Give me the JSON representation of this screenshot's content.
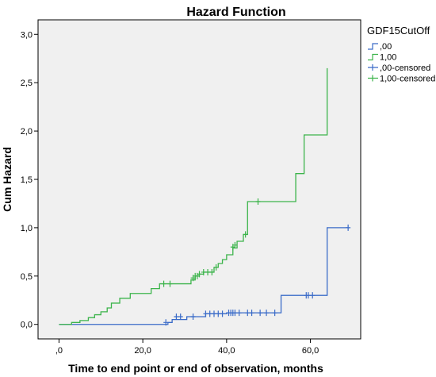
{
  "chart_data": {
    "type": "line",
    "title": "Hazard Function",
    "xlabel": "Time to end point or end of observation, months",
    "ylabel": "Cum Hazard",
    "xlim": [
      -5,
      72
    ],
    "ylim": [
      -0.15,
      3.15
    ],
    "x_ticks": [
      0,
      20,
      40,
      60
    ],
    "x_tick_labels": [
      ",0",
      "20,0",
      "40,0",
      "60,0"
    ],
    "y_ticks": [
      0,
      0.5,
      1,
      1.5,
      2,
      2.5,
      3
    ],
    "y_tick_labels": [
      "0,0",
      "0,5",
      "1,0",
      "1,5",
      "2,0",
      "2,5",
      "3,0"
    ],
    "plot_background": "#f0f0f0",
    "grid": false,
    "legend_position": "right",
    "legend": {
      "title": "GDF15CutOff",
      "entries": [
        {
          "label": ",00",
          "kind": "step",
          "color": "#3a6bc8"
        },
        {
          "label": "1,00",
          "kind": "step",
          "color": "#3cb44b"
        },
        {
          "label": ",00-censored",
          "kind": "censor",
          "color": "#3a6bc8"
        },
        {
          "label": "1,00-censored",
          "kind": "censor",
          "color": "#3cb44b"
        }
      ]
    },
    "series": [
      {
        "group": ",00",
        "color": "#3a6bc8",
        "steps": [
          [
            0,
            0.0
          ],
          [
            26,
            0.02
          ],
          [
            27,
            0.05
          ],
          [
            30.5,
            0.08
          ],
          [
            35,
            0.11
          ],
          [
            40,
            0.12
          ],
          [
            53,
            0.3
          ],
          [
            64,
            1.0
          ],
          [
            69,
            1.0
          ]
        ],
        "censored": [
          [
            25.5,
            0.02
          ],
          [
            28,
            0.08
          ],
          [
            29,
            0.08
          ],
          [
            32,
            0.08
          ],
          [
            35,
            0.11
          ],
          [
            36,
            0.11
          ],
          [
            37,
            0.11
          ],
          [
            38,
            0.11
          ],
          [
            39,
            0.11
          ],
          [
            40.5,
            0.12
          ],
          [
            41,
            0.12
          ],
          [
            41.5,
            0.12
          ],
          [
            42,
            0.12
          ],
          [
            43,
            0.12
          ],
          [
            45,
            0.12
          ],
          [
            46,
            0.12
          ],
          [
            48,
            0.12
          ],
          [
            49.5,
            0.12
          ],
          [
            51.5,
            0.12
          ],
          [
            59,
            0.3
          ],
          [
            59.5,
            0.3
          ],
          [
            60.5,
            0.3
          ],
          [
            69,
            1.0
          ]
        ]
      },
      {
        "group": "1,00",
        "color": "#3cb44b",
        "steps": [
          [
            0,
            0.0
          ],
          [
            3,
            0.02
          ],
          [
            5,
            0.04
          ],
          [
            7,
            0.07
          ],
          [
            8.5,
            0.1
          ],
          [
            10,
            0.13
          ],
          [
            11.5,
            0.17
          ],
          [
            12.5,
            0.22
          ],
          [
            14.5,
            0.27
          ],
          [
            17,
            0.32
          ],
          [
            22,
            0.37
          ],
          [
            24,
            0.42
          ],
          [
            31.5,
            0.46
          ],
          [
            32.5,
            0.5
          ],
          [
            33.5,
            0.52
          ],
          [
            34.5,
            0.54
          ],
          [
            37,
            0.59
          ],
          [
            38,
            0.63
          ],
          [
            39,
            0.67
          ],
          [
            40,
            0.72
          ],
          [
            41.5,
            0.79
          ],
          [
            42.5,
            0.86
          ],
          [
            44,
            0.93
          ],
          [
            45,
            1.27
          ],
          [
            56.5,
            1.56
          ],
          [
            58.5,
            1.96
          ],
          [
            64,
            2.65
          ]
        ],
        "censored": [
          [
            25,
            0.42
          ],
          [
            26.5,
            0.42
          ],
          [
            32,
            0.48
          ],
          [
            32.5,
            0.5
          ],
          [
            33,
            0.5
          ],
          [
            33.5,
            0.52
          ],
          [
            34.5,
            0.54
          ],
          [
            35.5,
            0.54
          ],
          [
            36.5,
            0.54
          ],
          [
            37.5,
            0.59
          ],
          [
            41.5,
            0.8
          ],
          [
            42,
            0.82
          ],
          [
            44.5,
            0.93
          ],
          [
            47.5,
            1.27
          ]
        ]
      }
    ]
  }
}
